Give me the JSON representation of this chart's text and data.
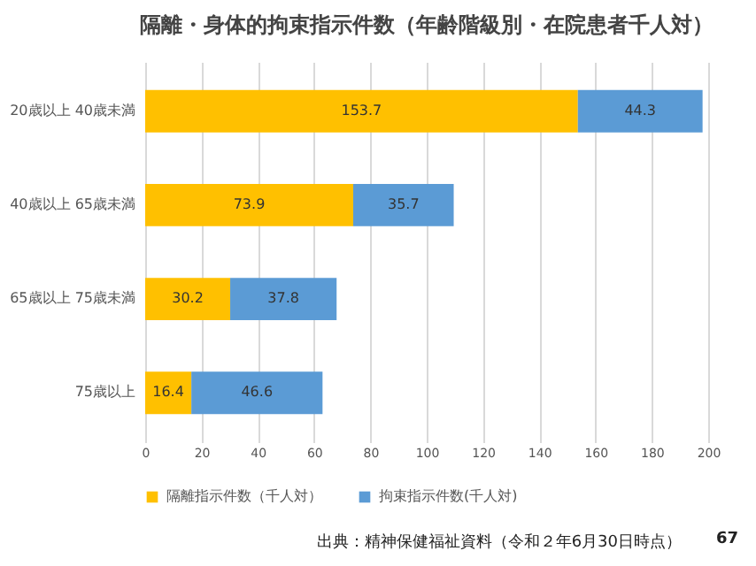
{
  "chart_data": {
    "type": "bar",
    "orientation": "horizontal",
    "stacked": true,
    "title": "隔離・身体的拘束指示件数（年齢階級別・在院患者千人対）",
    "categories": [
      "20歳以上 40歳未満",
      "40歳以上 65歳未満",
      "65歳以上 75歳未満",
      "75歳以上"
    ],
    "series": [
      {
        "name": "隔離指示件数（千人対）",
        "color": "#ffc000",
        "values": [
          153.7,
          73.9,
          30.2,
          16.4
        ]
      },
      {
        "name": "拘束指示件数(千人対)",
        "color": "#5b9bd5",
        "values": [
          44.3,
          35.7,
          37.8,
          46.6
        ]
      }
    ],
    "xlim": [
      0,
      200
    ],
    "xticks": [
      0,
      20,
      40,
      60,
      80,
      100,
      120,
      140,
      160,
      180,
      200
    ],
    "grid": "x",
    "legend": "bottom",
    "data_labels": true,
    "annotations": [
      "出典：精神保健福祉資料（令和２年6月30日時点）",
      "67"
    ]
  }
}
